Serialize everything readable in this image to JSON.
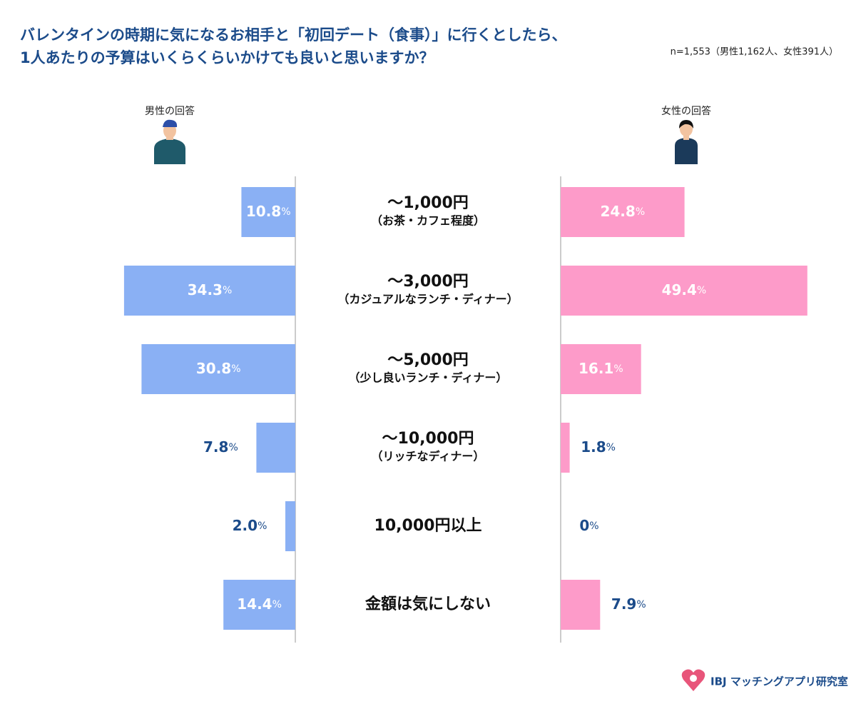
{
  "chart_data": {
    "type": "butterfly",
    "title": [
      "バレンタインの時期に気になるお相手と「初回デート（食事）」に行くとしたら、",
      "1人あたりの予算はいくらくらいかけても良いと思いますか？"
    ],
    "subtitle": "n=1,553（男性1,162人、女性391人）",
    "categories": [
      [
        "～1,000円",
        "（お茶・カフェ程度）"
      ],
      [
        "～3,000円",
        "（カジュアルなランチ・ディナー）"
      ],
      [
        "～5,000円",
        "（少し良いランチ・ディナー）"
      ],
      [
        "～10,000円",
        "（リッチなディナー）"
      ],
      [
        "10,000円以上"
      ],
      [
        "金額は気にしない"
      ]
    ],
    "unit": "%",
    "series": [
      {
        "name": "男性の回答",
        "color": "#8ab0f4",
        "side": "left",
        "values": [
          10.8,
          34.3,
          30.8,
          7.8,
          2.0,
          14.4
        ],
        "value_labels": [
          "10.8",
          "34.3",
          "30.8",
          "7.8",
          "2.0",
          "14.4"
        ]
      },
      {
        "name": "女性の回答",
        "color": "#fd9bc9",
        "side": "right",
        "values": [
          24.8,
          49.4,
          16.1,
          1.8,
          0,
          7.9
        ],
        "value_labels": [
          "24.8",
          "49.4",
          "16.1",
          "1.8",
          "0",
          "7.9"
        ]
      }
    ],
    "source": "IBJ マッチングアプリ研究室"
  }
}
